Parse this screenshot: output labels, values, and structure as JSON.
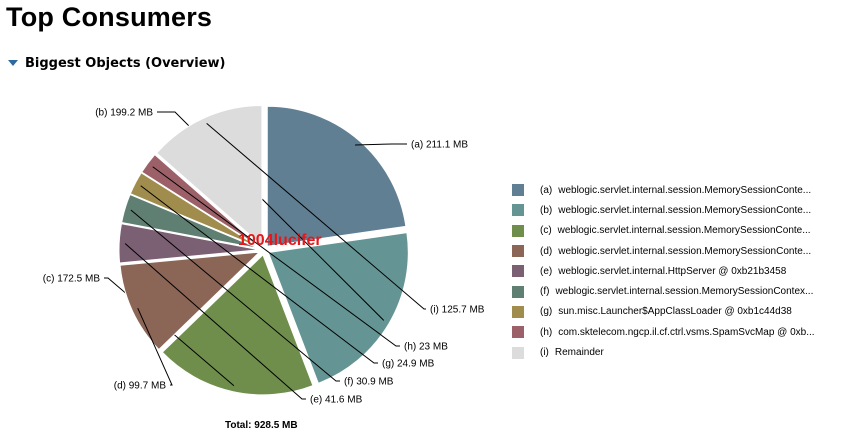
{
  "page_title": "Top Consumers",
  "section": {
    "label": "Biggest Objects (Overview)",
    "icon": "collapse-triangle-icon"
  },
  "watermark": "1004lucifer",
  "chart_data": {
    "type": "pie",
    "title": "",
    "total_label": "Total: 928.5 MB",
    "unit": "MB",
    "slices": [
      {
        "key": "(a)",
        "value": 211.1,
        "value_label": "211.1 MB",
        "legend": "weblogic.servlet.internal.session.MemorySessionConte...",
        "color": "#607f93"
      },
      {
        "key": "(b)",
        "value": 199.2,
        "value_label": "199.2 MB",
        "legend": "weblogic.servlet.internal.session.MemorySessionConte...",
        "color": "#649594"
      },
      {
        "key": "(c)",
        "value": 172.5,
        "value_label": "172.5 MB",
        "legend": "weblogic.servlet.internal.session.MemorySessionConte...",
        "color": "#6f8e4c"
      },
      {
        "key": "(d)",
        "value": 99.7,
        "value_label": "99.7 MB",
        "legend": "weblogic.servlet.internal.session.MemorySessionConte...",
        "color": "#8b6556"
      },
      {
        "key": "(e)",
        "value": 41.6,
        "value_label": "41.6 MB",
        "legend": "weblogic.servlet.internal.HttpServer @ 0xb21b3458",
        "color": "#7b5f73"
      },
      {
        "key": "(f)",
        "value": 30.9,
        "value_label": "30.9 MB",
        "legend": "weblogic.servlet.internal.session.MemorySessionContex...",
        "color": "#5f7f72"
      },
      {
        "key": "(g)",
        "value": 24.9,
        "value_label": "24.9 MB",
        "legend": "sun.misc.Launcher$AppClassLoader @ 0xb1c44d38",
        "color": "#a08c4c"
      },
      {
        "key": "(h)",
        "value": 23,
        "value_label": "23 MB",
        "legend": "com.sktelecom.ngcp.il.cf.ctrl.vsms.SpamSvcMap @ 0xb...",
        "color": "#9c6068"
      },
      {
        "key": "(i)",
        "value": 125.7,
        "value_label": "125.7 MB",
        "legend": "Remainder",
        "color": "#dcdcdc"
      }
    ]
  }
}
